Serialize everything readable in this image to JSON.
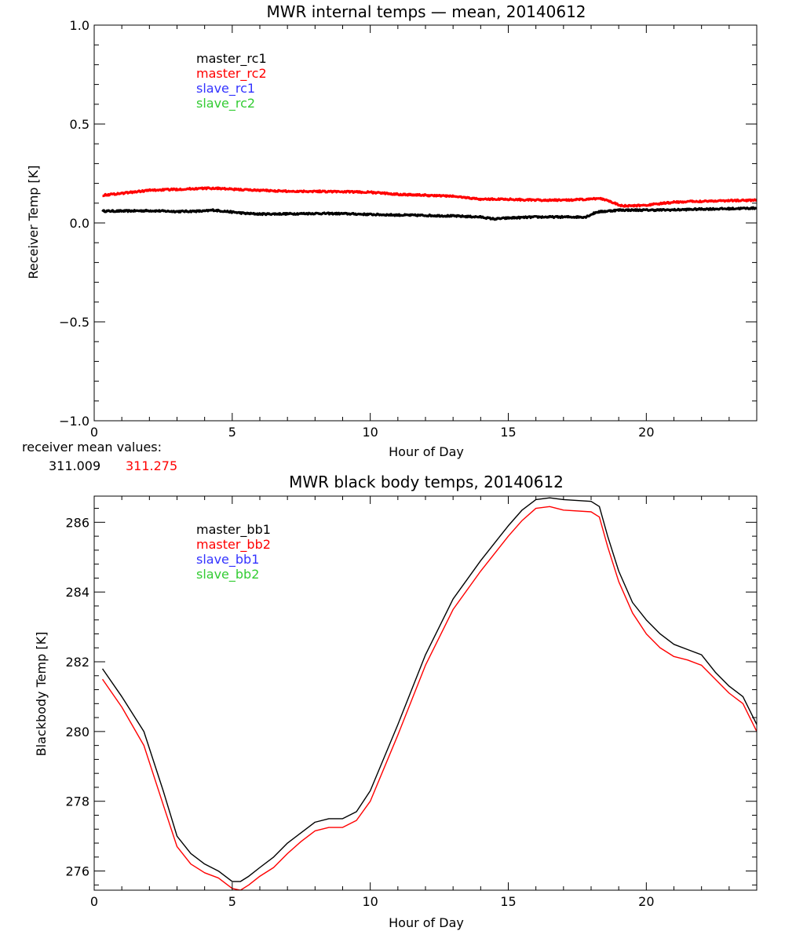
{
  "chart_data": [
    {
      "type": "line",
      "title": "MWR internal temps — mean, 20140612",
      "xlabel": "Hour of Day",
      "ylabel": "Receiver Temp [K]",
      "xlim": [
        0,
        24
      ],
      "ylim": [
        -1.0,
        1.0
      ],
      "xticks": [
        0,
        5,
        10,
        15,
        20
      ],
      "xtick_labels": [
        "0",
        "5",
        "10",
        "15",
        "20"
      ],
      "yticks": [
        -1.0,
        -0.5,
        0.0,
        0.5,
        1.0
      ],
      "ytick_labels": [
        "−1.0",
        "−0.5",
        "0.0",
        "0.5",
        "1.0"
      ],
      "grid": false,
      "legend_position": "top-left",
      "legend": [
        {
          "label": "master_rc1",
          "color": "#000000"
        },
        {
          "label": "master_rc2",
          "color": "#ff0000"
        },
        {
          "label": "slave_rc1",
          "color": "#3333ff"
        },
        {
          "label": "slave_rc2",
          "color": "#33cc33"
        }
      ],
      "note_label": "receiver mean values:",
      "note_values": [
        {
          "value": "311.009",
          "color": "#000000"
        },
        {
          "value": "311.275",
          "color": "#ff0000"
        }
      ],
      "series": [
        {
          "name": "master_rc1",
          "color": "#000000",
          "x": [
            0.3,
            1,
            2,
            3,
            4,
            4.3,
            5,
            5.5,
            6,
            7,
            8,
            9,
            10,
            11,
            12,
            13,
            14,
            14.5,
            15,
            16,
            17,
            17.8,
            18.2,
            19,
            20,
            21,
            22,
            23,
            24
          ],
          "y": [
            0.06,
            0.06,
            0.062,
            0.058,
            0.06,
            0.065,
            0.055,
            0.048,
            0.045,
            0.046,
            0.048,
            0.047,
            0.043,
            0.04,
            0.038,
            0.035,
            0.03,
            0.02,
            0.025,
            0.03,
            0.03,
            0.03,
            0.055,
            0.065,
            0.065,
            0.066,
            0.07,
            0.072,
            0.075
          ]
        },
        {
          "name": "master_rc2",
          "color": "#ff0000",
          "x": [
            0.3,
            1,
            2,
            3,
            4,
            4.5,
            5,
            6,
            7,
            8,
            9,
            10,
            11,
            12,
            13,
            14,
            15,
            16,
            17,
            18,
            18.3,
            18.7,
            19,
            19.3,
            20,
            21,
            22,
            23,
            24
          ],
          "y": [
            0.14,
            0.15,
            0.165,
            0.17,
            0.175,
            0.175,
            0.17,
            0.165,
            0.16,
            0.16,
            0.158,
            0.155,
            0.145,
            0.14,
            0.135,
            0.12,
            0.12,
            0.115,
            0.115,
            0.12,
            0.125,
            0.11,
            0.09,
            0.085,
            0.09,
            0.105,
            0.11,
            0.113,
            0.115
          ]
        }
      ]
    },
    {
      "type": "line",
      "title": "MWR black body temps, 20140612",
      "xlabel": "Hour of Day",
      "ylabel": "Blackbody Temp [K]",
      "xlim": [
        0,
        24
      ],
      "ylim": [
        275.45,
        286.75
      ],
      "xticks": [
        0,
        5,
        10,
        15,
        20
      ],
      "xtick_labels": [
        "0",
        "5",
        "10",
        "15",
        "20"
      ],
      "yticks": [
        276,
        278,
        280,
        282,
        284,
        286
      ],
      "ytick_labels": [
        "276",
        "278",
        "280",
        "282",
        "284",
        "286"
      ],
      "grid": false,
      "legend_position": "top-left",
      "legend": [
        {
          "label": "master_bb1",
          "color": "#000000"
        },
        {
          "label": "master_bb2",
          "color": "#ff0000"
        },
        {
          "label": "slave_bb1",
          "color": "#3333ff"
        },
        {
          "label": "slave_bb2",
          "color": "#33cc33"
        }
      ],
      "series": [
        {
          "name": "master_bb1",
          "color": "#000000",
          "x": [
            0.3,
            1,
            1.8,
            2.5,
            3,
            3.5,
            4,
            4.5,
            5,
            5.3,
            5.6,
            6,
            6.5,
            7,
            7.5,
            8,
            8.5,
            9,
            9.5,
            10,
            11,
            12,
            13,
            14,
            14.5,
            15,
            15.5,
            16,
            16.5,
            17,
            18,
            18.3,
            18.6,
            19,
            19.5,
            20,
            20.5,
            21,
            21.5,
            22,
            22.5,
            23,
            23.5,
            24
          ],
          "y": [
            281.8,
            281.0,
            280.0,
            278.3,
            277.0,
            276.5,
            276.2,
            276.0,
            275.7,
            275.7,
            275.85,
            276.1,
            276.4,
            276.8,
            277.1,
            277.4,
            277.5,
            277.5,
            277.7,
            278.3,
            280.2,
            282.2,
            283.8,
            284.9,
            285.4,
            285.9,
            286.35,
            286.65,
            286.7,
            286.65,
            286.6,
            286.45,
            285.6,
            284.6,
            283.7,
            283.2,
            282.8,
            282.5,
            282.35,
            282.2,
            281.7,
            281.3,
            281.0,
            280.2
          ]
        },
        {
          "name": "master_bb2",
          "color": "#ff0000",
          "x": [
            0.3,
            1,
            1.8,
            2.5,
            3,
            3.5,
            4,
            4.5,
            5,
            5.3,
            5.6,
            6,
            6.5,
            7,
            7.5,
            8,
            8.5,
            9,
            9.5,
            10,
            11,
            12,
            13,
            14,
            14.5,
            15,
            15.5,
            16,
            16.5,
            17,
            18,
            18.3,
            18.6,
            19,
            19.5,
            20,
            20.5,
            21,
            21.5,
            22,
            22.5,
            23,
            23.5,
            24
          ],
          "y": [
            281.5,
            280.7,
            279.6,
            277.9,
            276.7,
            276.2,
            275.95,
            275.8,
            275.5,
            275.45,
            275.6,
            275.85,
            276.1,
            276.5,
            276.85,
            277.15,
            277.25,
            277.25,
            277.45,
            278.0,
            279.9,
            281.9,
            283.5,
            284.6,
            285.1,
            285.6,
            286.05,
            286.4,
            286.45,
            286.35,
            286.3,
            286.15,
            285.3,
            284.3,
            283.4,
            282.8,
            282.4,
            282.15,
            282.05,
            281.9,
            281.5,
            281.1,
            280.8,
            280.0
          ]
        }
      ]
    }
  ]
}
